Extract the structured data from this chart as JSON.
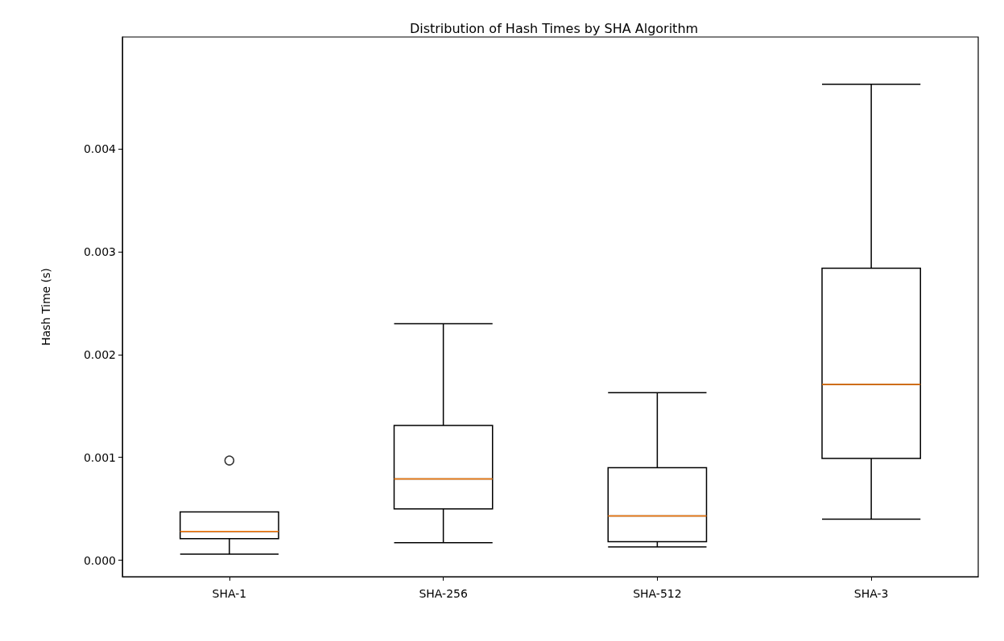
{
  "chart_data": {
    "type": "box",
    "title": "Distribution of Hash Times by SHA Algorithm",
    "ylabel": "Hash Time (s)",
    "categories": [
      "SHA-1",
      "SHA-256",
      "SHA-512",
      "SHA-3"
    ],
    "boxes": [
      {
        "low": 6e-05,
        "q1": 0.00021,
        "median": 0.00028,
        "q3": 0.00047,
        "high": 0.00047,
        "outliers": [
          0.00097
        ]
      },
      {
        "low": 0.00017,
        "q1": 0.0005,
        "median": 0.00079,
        "q3": 0.00131,
        "high": 0.0023
      },
      {
        "low": 0.00013,
        "q1": 0.00018,
        "median": 0.00043,
        "q3": 0.0009,
        "high": 0.00163
      },
      {
        "low": 0.0004,
        "q1": 0.00099,
        "median": 0.00171,
        "q3": 0.00284,
        "high": 0.00463
      }
    ],
    "color": "#000000",
    "ylim": [
      -0.00016,
      0.00509
    ],
    "yticks": [
      {
        "value": 0,
        "label": "0.000"
      },
      {
        "value": 0.001,
        "label": "0.001"
      },
      {
        "value": 0.002,
        "label": "0.002"
      },
      {
        "value": 0.003,
        "label": "0.003"
      },
      {
        "value": 0.004,
        "label": "0.004"
      }
    ],
    "grid": false
  }
}
